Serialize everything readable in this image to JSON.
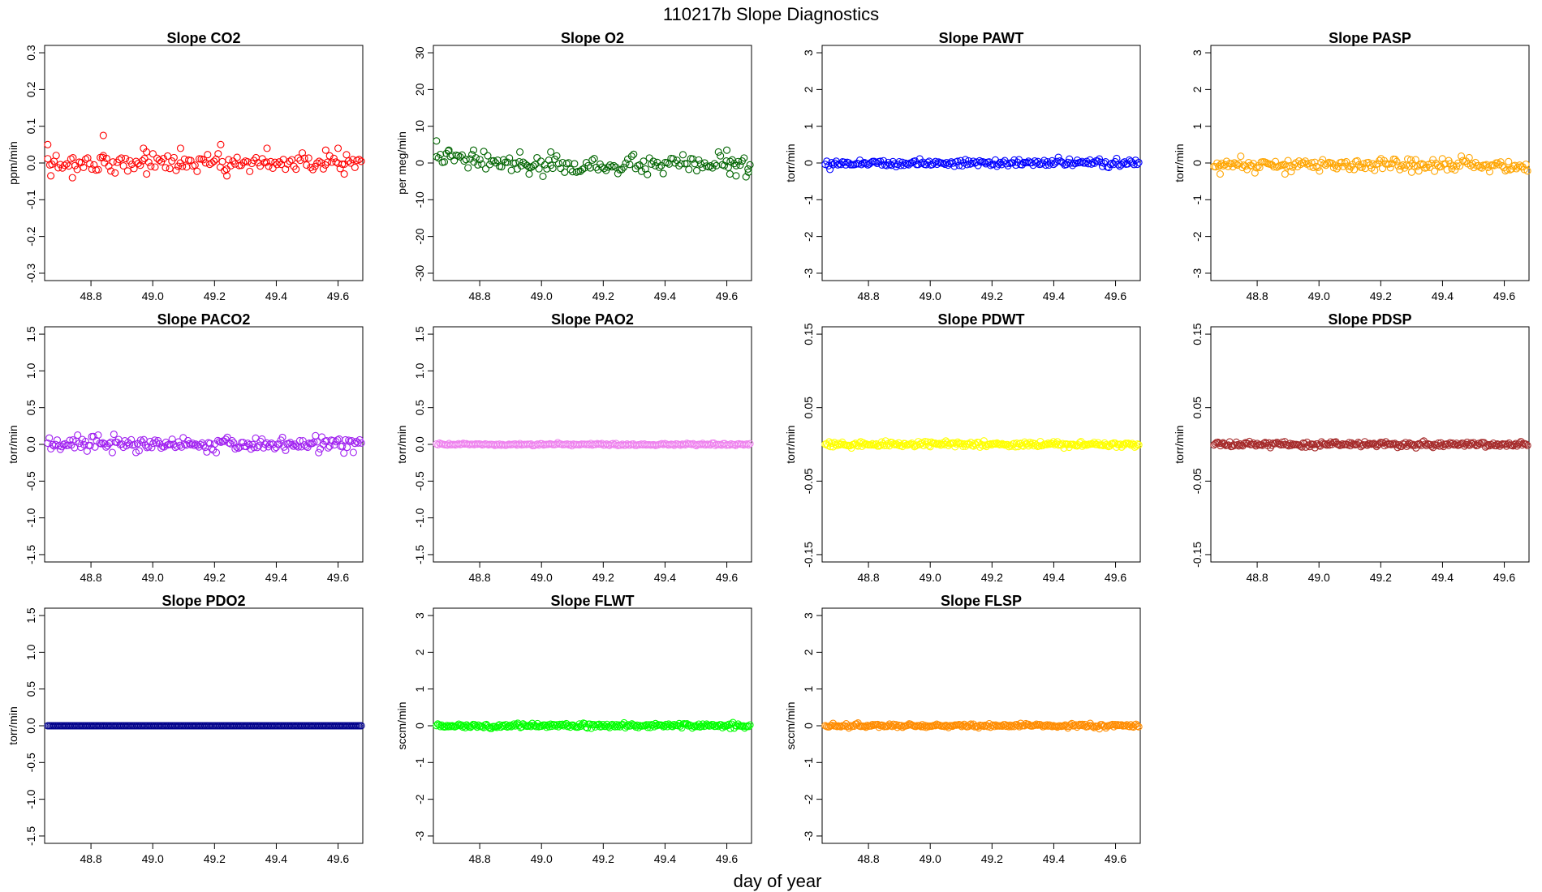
{
  "figure": {
    "title": "110217b   Slope Diagnostics",
    "xlabel": "day of year"
  },
  "chart_data": [
    {
      "type": "scatter",
      "title": "Slope CO2",
      "ylabel": "ppm/min",
      "color": "#ff0000",
      "xlim": [
        48.65,
        49.68
      ],
      "ylim": [
        -0.32,
        0.32
      ],
      "xticks": [
        "48.8",
        "49.0",
        "49.2",
        "49.4",
        "49.6"
      ],
      "yticks": [
        "-0.3",
        "-0.2",
        "-0.1",
        "0.0",
        "0.1",
        "0.2",
        "0.3"
      ],
      "x_range": [
        48.66,
        49.675
      ],
      "n_points": 150,
      "noise": 0.012,
      "offset": 0,
      "outliers": [
        [
          48.66,
          0.05
        ],
        [
          48.67,
          -0.035
        ],
        [
          48.84,
          0.075
        ],
        [
          48.84,
          0.02
        ],
        [
          48.74,
          -0.04
        ],
        [
          48.97,
          0.04
        ],
        [
          48.98,
          0.03
        ],
        [
          49.09,
          0.04
        ],
        [
          49.22,
          0.05
        ],
        [
          49.24,
          -0.035
        ],
        [
          49.37,
          0.04
        ],
        [
          49.56,
          0.035
        ],
        [
          49.6,
          0.04
        ],
        [
          49.62,
          -0.03
        ]
      ]
    },
    {
      "type": "scatter",
      "title": "Slope O2",
      "ylabel": "per meg/min",
      "color": "#006400",
      "xlim": [
        48.65,
        49.68
      ],
      "ylim": [
        -32,
        32
      ],
      "xticks": [
        "48.8",
        "49.0",
        "49.2",
        "49.4",
        "49.6"
      ],
      "yticks": [
        "-30",
        "-20",
        "-10",
        "0",
        "10",
        "20",
        "30"
      ],
      "x_range": [
        48.66,
        49.675
      ],
      "n_points": 160,
      "noise": 1.2,
      "offset": 0,
      "outliers": [
        [
          48.66,
          6
        ],
        [
          48.7,
          3.5
        ],
        [
          48.78,
          3.5
        ],
        [
          48.93,
          3
        ],
        [
          48.96,
          -3
        ],
        [
          49.03,
          3
        ],
        [
          49.6,
          3.5
        ],
        [
          49.61,
          -3
        ],
        [
          49.63,
          -3.5
        ],
        [
          49.67,
          -2.5
        ]
      ],
      "trend": [
        [
          48.66,
          1.5
        ],
        [
          49.0,
          -1
        ],
        [
          49.67,
          -0.5
        ]
      ]
    },
    {
      "type": "scatter",
      "title": "Slope PAWT",
      "ylabel": "torr/min",
      "color": "#0000ff",
      "xlim": [
        48.65,
        49.68
      ],
      "ylim": [
        -3.2,
        3.2
      ],
      "xticks": [
        "48.8",
        "49.0",
        "49.2",
        "49.4",
        "49.6"
      ],
      "yticks": [
        "-3",
        "-2",
        "-1",
        "0",
        "1",
        "2",
        "3"
      ],
      "x_range": [
        48.66,
        49.675
      ],
      "n_points": 200,
      "noise": 0.05,
      "offset": 0,
      "outliers": []
    },
    {
      "type": "scatter",
      "title": "Slope PASP",
      "ylabel": "torr/min",
      "color": "#ffa500",
      "xlim": [
        48.65,
        49.68
      ],
      "ylim": [
        -3.2,
        3.2
      ],
      "xticks": [
        "48.8",
        "49.0",
        "49.2",
        "49.4",
        "49.6"
      ],
      "yticks": [
        "-3",
        "-2",
        "-1",
        "0",
        "1",
        "2",
        "3"
      ],
      "x_range": [
        48.66,
        49.675
      ],
      "n_points": 200,
      "noise": 0.08,
      "offset": -0.05,
      "outliers": [
        [
          48.68,
          -0.3
        ],
        [
          48.89,
          -0.3
        ],
        [
          49.3,
          -0.25
        ]
      ]
    },
    {
      "type": "scatter",
      "title": "Slope PACO2",
      "ylabel": "torr/min",
      "color": "#a020f0",
      "xlim": [
        48.65,
        49.68
      ],
      "ylim": [
        -1.6,
        1.6
      ],
      "xticks": [
        "48.8",
        "49.0",
        "49.2",
        "49.4",
        "49.6"
      ],
      "yticks": [
        "-1.5",
        "-1.0",
        "-0.5",
        "0.0",
        "0.5",
        "1.0",
        "1.5"
      ],
      "x_range": [
        48.66,
        49.675
      ],
      "n_points": 200,
      "noise": 0.05,
      "offset": 0,
      "outliers": []
    },
    {
      "type": "scatter",
      "title": "Slope PAO2",
      "ylabel": "torr/min",
      "color": "#ee82ee",
      "xlim": [
        48.65,
        49.68
      ],
      "ylim": [
        -1.6,
        1.6
      ],
      "xticks": [
        "48.8",
        "49.0",
        "49.2",
        "49.4",
        "49.6"
      ],
      "yticks": [
        "-1.5",
        "-1.0",
        "-0.5",
        "0.0",
        "0.5",
        "1.0",
        "1.5"
      ],
      "x_range": [
        48.66,
        49.675
      ],
      "n_points": 200,
      "noise": 0.008,
      "offset": 0,
      "outliers": []
    },
    {
      "type": "scatter",
      "title": "Slope PDWT",
      "ylabel": "torr/min",
      "color": "#ffff00",
      "xlim": [
        48.65,
        49.68
      ],
      "ylim": [
        -0.16,
        0.16
      ],
      "xticks": [
        "48.8",
        "49.0",
        "49.2",
        "49.4",
        "49.6"
      ],
      "yticks": [
        "-0.15",
        "-0.05",
        "0.05",
        "0.15"
      ],
      "x_range": [
        48.66,
        49.675
      ],
      "n_points": 240,
      "noise": 0.002,
      "offset": 0,
      "outliers": []
    },
    {
      "type": "scatter",
      "title": "Slope PDSP",
      "ylabel": "torr/min",
      "color": "#a52a2a",
      "xlim": [
        48.65,
        49.68
      ],
      "ylim": [
        -0.16,
        0.16
      ],
      "xticks": [
        "48.8",
        "49.0",
        "49.2",
        "49.4",
        "49.6"
      ],
      "yticks": [
        "-0.15",
        "-0.05",
        "0.05",
        "0.15"
      ],
      "x_range": [
        48.66,
        49.675
      ],
      "n_points": 240,
      "noise": 0.0018,
      "offset": 0,
      "outliers": []
    },
    {
      "type": "scatter",
      "title": "Slope PDO2",
      "ylabel": "torr/min",
      "color": "#00008b",
      "xlim": [
        48.65,
        49.68
      ],
      "ylim": [
        -1.6,
        1.6
      ],
      "xticks": [
        "48.8",
        "49.0",
        "49.2",
        "49.4",
        "49.6"
      ],
      "yticks": [
        "-1.5",
        "-1.0",
        "-0.5",
        "0.0",
        "0.5",
        "1.0",
        "1.5"
      ],
      "x_range": [
        48.66,
        49.675
      ],
      "n_points": 240,
      "noise": 0,
      "offset": 0,
      "outliers": []
    },
    {
      "type": "scatter",
      "title": "Slope FLWT",
      "ylabel": "sccm/min",
      "color": "#00ff00",
      "xlim": [
        48.65,
        49.68
      ],
      "ylim": [
        -3.2,
        3.2
      ],
      "xticks": [
        "48.8",
        "49.0",
        "49.2",
        "49.4",
        "49.6"
      ],
      "yticks": [
        "-3",
        "-2",
        "-1",
        "0",
        "1",
        "2",
        "3"
      ],
      "x_range": [
        48.66,
        49.675
      ],
      "n_points": 240,
      "noise": 0.03,
      "offset": 0,
      "outliers": []
    },
    {
      "type": "scatter",
      "title": "Slope FLSP",
      "ylabel": "sccm/min",
      "color": "#ff8c00",
      "xlim": [
        48.65,
        49.68
      ],
      "ylim": [
        -3.2,
        3.2
      ],
      "xticks": [
        "48.8",
        "49.0",
        "49.2",
        "49.4",
        "49.6"
      ],
      "yticks": [
        "-3",
        "-2",
        "-1",
        "0",
        "1",
        "2",
        "3"
      ],
      "x_range": [
        48.66,
        49.675
      ],
      "n_points": 240,
      "noise": 0.025,
      "offset": 0,
      "outliers": []
    }
  ]
}
